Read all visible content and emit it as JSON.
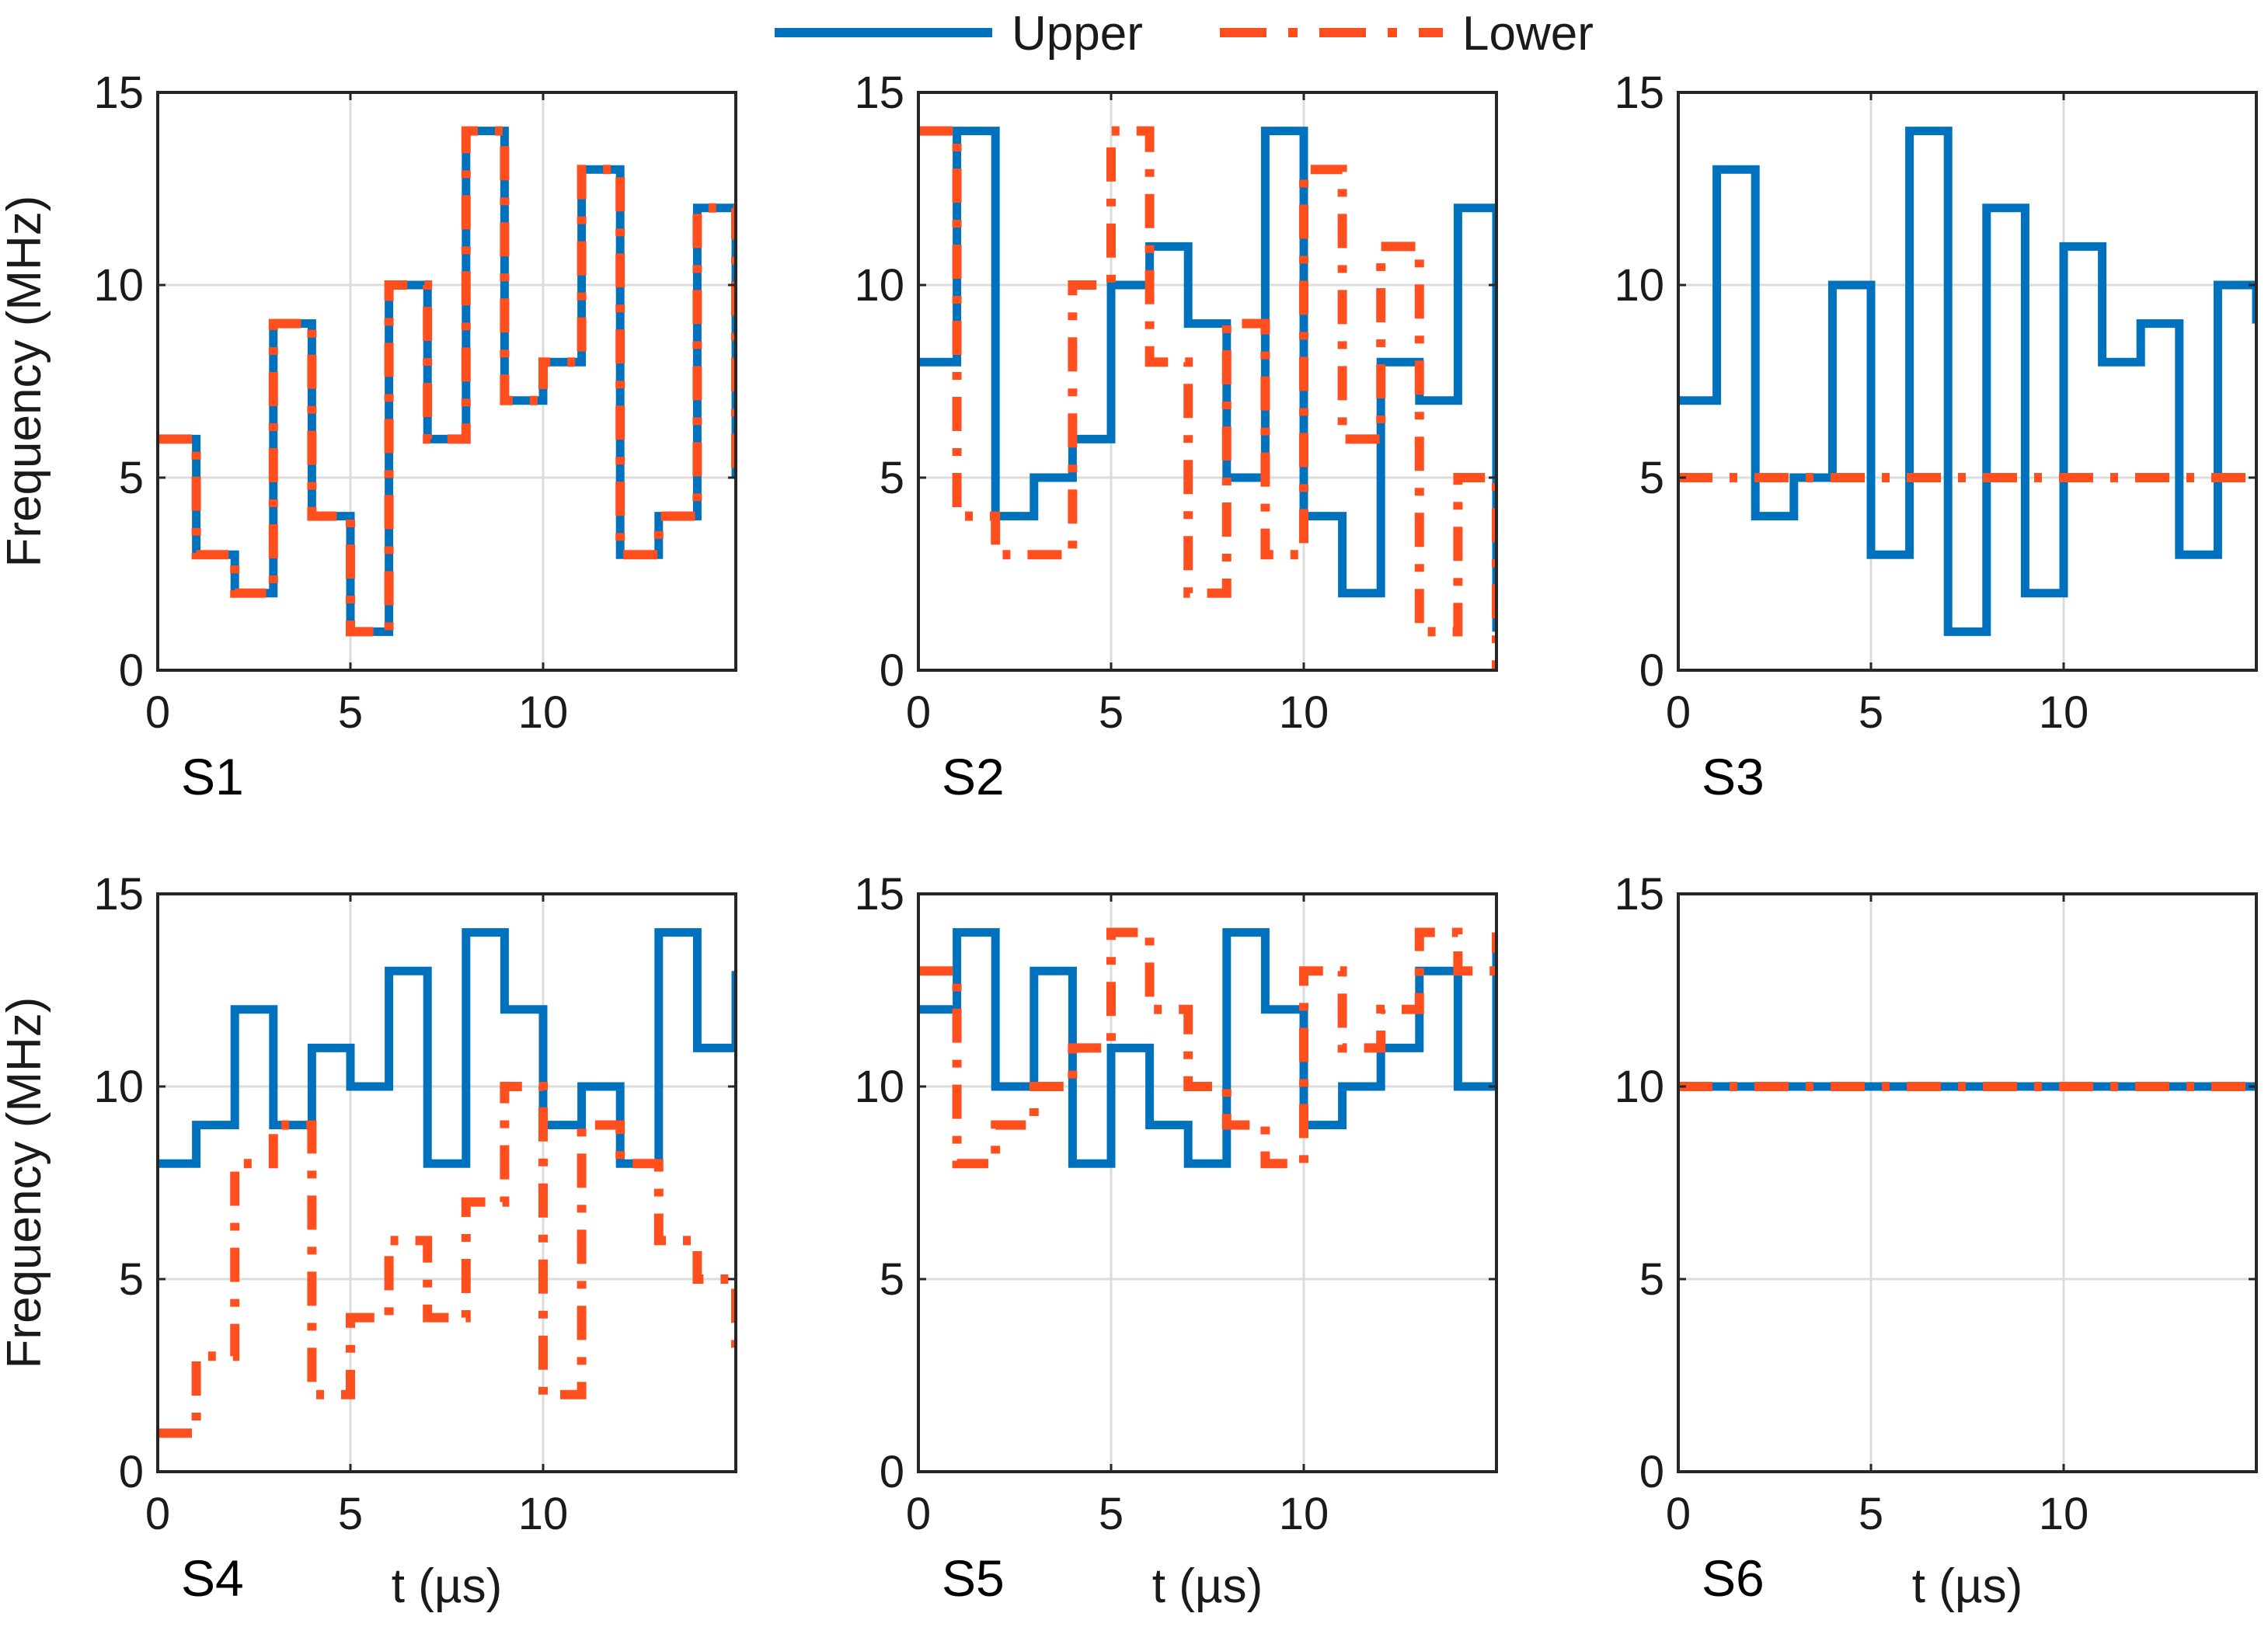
{
  "chart_data": {
    "type": "line",
    "step": true,
    "x_unit": "µs",
    "y_unit": "MHz",
    "xlim": [
      0,
      15
    ],
    "ylim": [
      0,
      15
    ],
    "xticks": [
      0,
      5,
      10
    ],
    "yticks": [
      0,
      5,
      10,
      15
    ],
    "xlabel": "t (µs)",
    "ylabel": "Frequency (MHz)",
    "grid": true,
    "legend": {
      "position": "top-center",
      "entries": [
        {
          "name": "Upper",
          "color": "#0072BD",
          "style": "solid"
        },
        {
          "name": "Lower",
          "color": "#FF4F1F",
          "style": "dash-dot"
        }
      ]
    },
    "panels": [
      {
        "label": "S1",
        "series": [
          {
            "name": "Upper",
            "x": [
              0,
              1,
              2,
              3,
              4,
              5,
              6,
              7,
              8,
              9,
              10,
              11,
              12,
              13,
              14,
              15
            ],
            "values": [
              6,
              3,
              2,
              9,
              4,
              1,
              10,
              6,
              14,
              7,
              8,
              13,
              3,
              4,
              12,
              5
            ]
          },
          {
            "name": "Lower",
            "x": [
              0,
              1,
              2,
              3,
              4,
              5,
              6,
              7,
              8,
              9,
              10,
              11,
              12,
              13,
              14,
              15
            ],
            "values": [
              6,
              3,
              2,
              9,
              4,
              1,
              10,
              6,
              14,
              7,
              8,
              13,
              3,
              4,
              12,
              5
            ]
          }
        ]
      },
      {
        "label": "S2",
        "series": [
          {
            "name": "Upper",
            "x": [
              0,
              1,
              2,
              3,
              4,
              5,
              6,
              7,
              8,
              9,
              10,
              11,
              12,
              13,
              14,
              15
            ],
            "values": [
              8,
              14,
              4,
              5,
              6,
              10,
              11,
              9,
              5,
              14,
              4,
              2,
              8,
              7,
              12,
              1
            ]
          },
          {
            "name": "Lower",
            "x": [
              0,
              1,
              2,
              3,
              4,
              5,
              6,
              7,
              8,
              9,
              10,
              11,
              12,
              13,
              14,
              15
            ],
            "values": [
              14,
              4,
              3,
              3,
              10,
              14,
              8,
              2,
              9,
              3,
              13,
              6,
              11,
              1,
              5,
              0
            ]
          }
        ]
      },
      {
        "label": "S3",
        "series": [
          {
            "name": "Upper",
            "x": [
              0,
              1,
              2,
              3,
              4,
              5,
              6,
              7,
              8,
              9,
              10,
              11,
              12,
              13,
              14,
              15
            ],
            "values": [
              7,
              13,
              4,
              5,
              10,
              3,
              14,
              1,
              12,
              2,
              11,
              8,
              9,
              3,
              10,
              9
            ]
          },
          {
            "name": "Lower",
            "x": [
              0,
              15
            ],
            "values": [
              5,
              5
            ]
          }
        ]
      },
      {
        "label": "S4",
        "series": [
          {
            "name": "Upper",
            "x": [
              0,
              1,
              2,
              3,
              4,
              5,
              6,
              7,
              8,
              9,
              10,
              11,
              12,
              13,
              14,
              15
            ],
            "values": [
              8,
              9,
              12,
              9,
              11,
              10,
              13,
              8,
              14,
              12,
              9,
              10,
              8,
              14,
              11,
              13
            ]
          },
          {
            "name": "Lower",
            "x": [
              0,
              1,
              2,
              3,
              4,
              5,
              6,
              7,
              8,
              9,
              10,
              11,
              12,
              13,
              14,
              15
            ],
            "values": [
              1,
              3,
              8,
              9,
              2,
              4,
              6,
              4,
              7,
              10,
              2,
              9,
              8,
              6,
              5,
              3
            ]
          }
        ]
      },
      {
        "label": "S5",
        "series": [
          {
            "name": "Upper",
            "x": [
              0,
              1,
              2,
              3,
              4,
              5,
              6,
              7,
              8,
              9,
              10,
              11,
              12,
              13,
              14,
              15
            ],
            "values": [
              12,
              14,
              10,
              13,
              8,
              11,
              9,
              8,
              14,
              12,
              9,
              10,
              11,
              13,
              10,
              14
            ]
          },
          {
            "name": "Lower",
            "x": [
              0,
              1,
              2,
              3,
              4,
              5,
              6,
              7,
              8,
              9,
              10,
              11,
              12,
              13,
              14,
              15
            ],
            "values": [
              13,
              8,
              9,
              10,
              11,
              14,
              12,
              10,
              9,
              8,
              13,
              11,
              12,
              14,
              13,
              14
            ]
          }
        ]
      },
      {
        "label": "S6",
        "series": [
          {
            "name": "Upper",
            "x": [
              0,
              15
            ],
            "values": [
              10,
              10
            ]
          },
          {
            "name": "Lower",
            "x": [
              0,
              15
            ],
            "values": [
              10,
              10
            ]
          }
        ]
      }
    ]
  }
}
